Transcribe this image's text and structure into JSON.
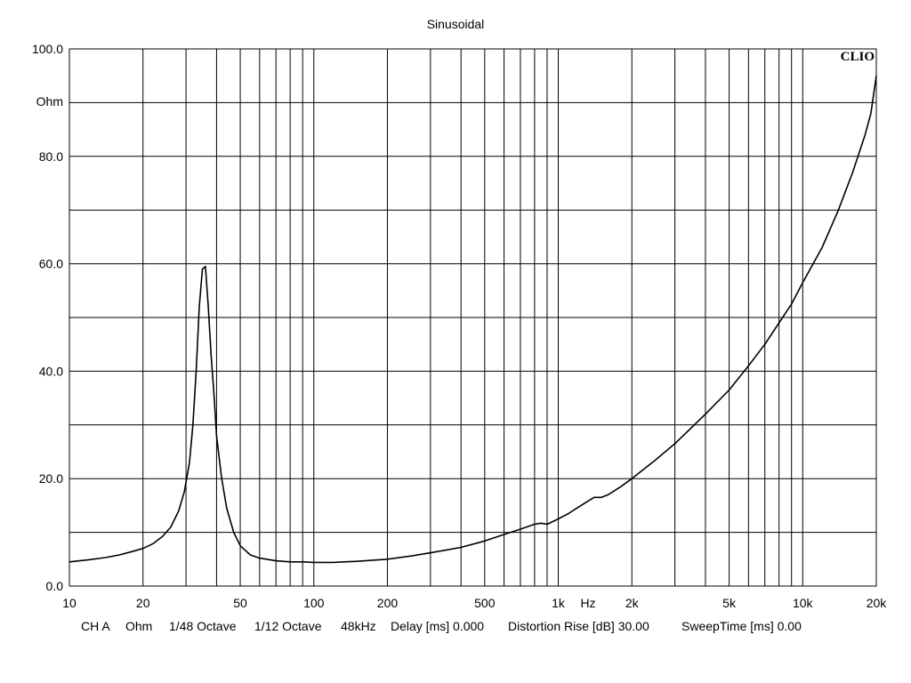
{
  "chart_data": {
    "type": "line",
    "title": "Sinusoidal",
    "xscale": "log",
    "xlim": [
      10,
      20000
    ],
    "ylim": [
      0,
      100
    ],
    "y_unit": "Ohm",
    "x_unit": "Hz",
    "logo": "CLIO",
    "grid": true,
    "x_ticks": [
      {
        "v": 10,
        "label": "10"
      },
      {
        "v": 20,
        "label": "20"
      },
      {
        "v": 50,
        "label": "50"
      },
      {
        "v": 100,
        "label": "100"
      },
      {
        "v": 200,
        "label": "200"
      },
      {
        "v": 500,
        "label": "500"
      },
      {
        "v": 1000,
        "label": "1k"
      },
      {
        "v": 2000,
        "label": "2k"
      },
      {
        "v": 5000,
        "label": "5k"
      },
      {
        "v": 10000,
        "label": "10k"
      },
      {
        "v": 20000,
        "label": "20k"
      }
    ],
    "y_ticks": [
      {
        "v": 0,
        "label": "0.0"
      },
      {
        "v": 20,
        "label": "20.0"
      },
      {
        "v": 40,
        "label": "40.0"
      },
      {
        "v": 60,
        "label": "60.0"
      },
      {
        "v": 80,
        "label": "80.0"
      },
      {
        "v": 100,
        "label": "100.0"
      }
    ],
    "series": [
      {
        "color": "#000000",
        "x": [
          10,
          12,
          14,
          16,
          18,
          20,
          22,
          24,
          26,
          28,
          29.5,
          31,
          32,
          33,
          34,
          35,
          36,
          37,
          38,
          39,
          40,
          42,
          44,
          47,
          50,
          55,
          60,
          70,
          80,
          90,
          100,
          110,
          120,
          150,
          200,
          250,
          300,
          400,
          500,
          600,
          700,
          800,
          850,
          900,
          1000,
          1100,
          1200,
          1300,
          1400,
          1500,
          1600,
          1800,
          2000,
          2500,
          3000,
          4000,
          5000,
          6000,
          7000,
          8000,
          9000,
          10000,
          12000,
          14000,
          16000,
          18000,
          19000,
          20000
        ],
        "y": [
          4.5,
          4.9,
          5.3,
          5.8,
          6.4,
          7.0,
          7.9,
          9.2,
          11.0,
          14.0,
          17.5,
          23.0,
          30.0,
          40.0,
          52.0,
          59.0,
          59.5,
          52.0,
          43.0,
          36.0,
          28.0,
          20.0,
          14.5,
          10.0,
          7.5,
          5.8,
          5.2,
          4.7,
          4.5,
          4.5,
          4.4,
          4.4,
          4.4,
          4.6,
          5.0,
          5.6,
          6.2,
          7.2,
          8.4,
          9.6,
          10.6,
          11.5,
          11.7,
          11.5,
          12.5,
          13.5,
          14.6,
          15.6,
          16.5,
          16.5,
          17.0,
          18.5,
          20.0,
          23.5,
          26.5,
          32.0,
          36.5,
          41.0,
          45.0,
          49.0,
          52.5,
          56.5,
          63.0,
          70.0,
          77.0,
          84.0,
          88.0,
          95.0
        ]
      }
    ]
  },
  "footer": {
    "channel": "CH A",
    "unit": "Ohm",
    "resolution": "1/48 Octave",
    "smoothing": "1/12 Octave",
    "sample_rate": "48kHz",
    "delay": "Delay [ms] 0.000",
    "distortion_rise": "Distortion Rise [dB] 30.00",
    "sweep_time": "SweepTime [ms] 0.00"
  }
}
